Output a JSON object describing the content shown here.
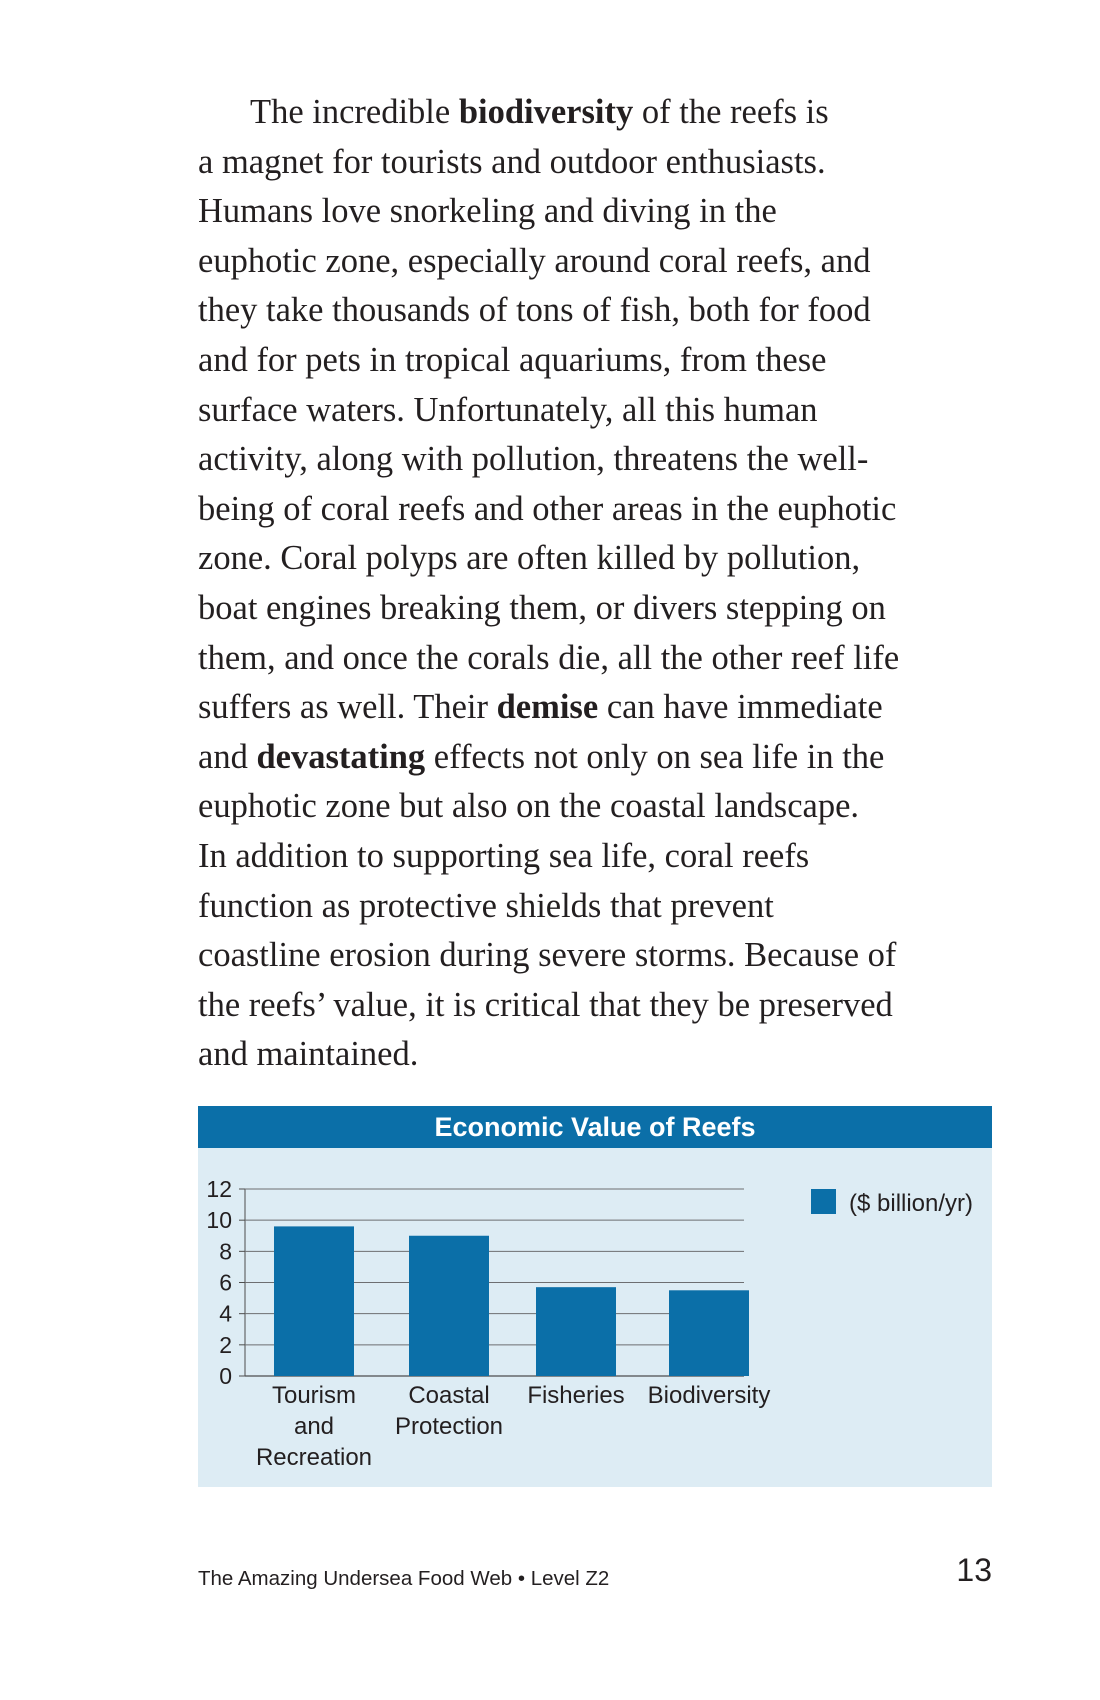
{
  "paragraph": {
    "lines": [
      [
        {
          "t": "The incredible "
        },
        {
          "t": "biodiversity",
          "b": true
        },
        {
          "t": " of the reefs is"
        }
      ],
      [
        {
          "t": "a magnet for tourists and outdoor enthusiasts."
        }
      ],
      [
        {
          "t": "Humans love snorkeling and diving in the"
        }
      ],
      [
        {
          "t": "euphotic zone, especially around coral reefs, and"
        }
      ],
      [
        {
          "t": "they take thousands of tons of fish, both for food"
        }
      ],
      [
        {
          "t": "and for pets in tropical aquariums, from these"
        }
      ],
      [
        {
          "t": "surface waters. Unfortunately, all this human"
        }
      ],
      [
        {
          "t": "activity, along with pollution, threatens the well-"
        }
      ],
      [
        {
          "t": "being of coral reefs and other areas in the euphotic"
        }
      ],
      [
        {
          "t": "zone. Coral polyps are often killed by pollution,"
        }
      ],
      [
        {
          "t": "boat engines breaking them, or divers stepping on"
        }
      ],
      [
        {
          "t": "them, and once the corals die, all the other reef life"
        }
      ],
      [
        {
          "t": "suffers as well. Their "
        },
        {
          "t": "demise",
          "b": true
        },
        {
          "t": " can have immediate"
        }
      ],
      [
        {
          "t": "and "
        },
        {
          "t": "devastating",
          "b": true
        },
        {
          "t": " effects not only on sea life in the"
        }
      ],
      [
        {
          "t": "euphotic zone but also on the coastal landscape."
        }
      ],
      [
        {
          "t": "In addition to supporting sea life, coral reefs"
        }
      ],
      [
        {
          "t": "function as protective shields that prevent"
        }
      ],
      [
        {
          "t": "coastline erosion during severe storms. Because of"
        }
      ],
      [
        {
          "t": "the reefs’ value, it is critical that they be preserved"
        }
      ],
      [
        {
          "t": "and maintained."
        }
      ]
    ]
  },
  "chart_data": {
    "type": "bar",
    "title": "Economic Value of Reefs",
    "categories": [
      [
        "Tourism",
        "and",
        "Recreation"
      ],
      [
        "Coastal",
        "Protection"
      ],
      [
        "Fisheries"
      ],
      [
        "Biodiversity"
      ]
    ],
    "series": [
      {
        "name": "($ billion/yr)",
        "values": [
          9.6,
          9.0,
          5.7,
          5.5
        ],
        "color": "#0b6fa8"
      }
    ],
    "yticks": [
      0,
      2,
      4,
      6,
      8,
      10,
      12
    ],
    "ylim": [
      0,
      12
    ],
    "xlabel": "",
    "ylabel": "",
    "grid": true,
    "legend_position": "top-right"
  },
  "footer": {
    "book_title": "The Amazing Undersea Food Web • Level Z2",
    "page_number": "13"
  }
}
